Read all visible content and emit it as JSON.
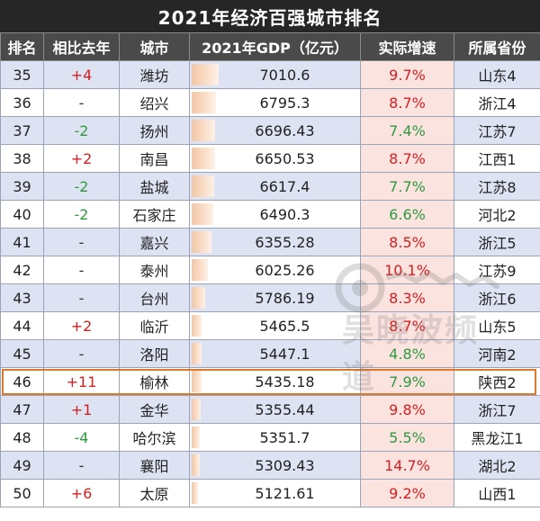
{
  "title": "2021年经济百强城市排名",
  "headers": [
    "排名",
    "相比去年",
    "城市",
    "2021年GDP（亿元）",
    "实际增速",
    "所属省份"
  ],
  "watermark": {
    "brand": "channel-wu",
    "text": "吴晓波频道"
  },
  "colors": {
    "up": "#d42020",
    "down": "#2e9a3e",
    "highlight": "#e0782b",
    "header_bg": "#4a4a4a",
    "title_bg": "#262626"
  },
  "highlight_rank": "46",
  "rows": [
    {
      "rank": "35",
      "change": "+4",
      "city": "潍坊",
      "gdp": "7010.6",
      "growth": "9.7%",
      "province": "山东4"
    },
    {
      "rank": "36",
      "change": "-",
      "city": "绍兴",
      "gdp": "6795.3",
      "growth": "8.7%",
      "province": "浙江4"
    },
    {
      "rank": "37",
      "change": "-2",
      "city": "扬州",
      "gdp": "6696.43",
      "growth": "7.4%",
      "province": "江苏7"
    },
    {
      "rank": "38",
      "change": "+2",
      "city": "南昌",
      "gdp": "6650.53",
      "growth": "8.7%",
      "province": "江西1"
    },
    {
      "rank": "39",
      "change": "-2",
      "city": "盐城",
      "gdp": "6617.4",
      "growth": "7.7%",
      "province": "江苏8"
    },
    {
      "rank": "40",
      "change": "-2",
      "city": "石家庄",
      "gdp": "6490.3",
      "growth": "6.6%",
      "province": "河北2"
    },
    {
      "rank": "41",
      "change": "-",
      "city": "嘉兴",
      "gdp": "6355.28",
      "growth": "8.5%",
      "province": "浙江5"
    },
    {
      "rank": "42",
      "change": "-",
      "city": "泰州",
      "gdp": "6025.26",
      "growth": "10.1%",
      "province": "江苏9"
    },
    {
      "rank": "43",
      "change": "-",
      "city": "台州",
      "gdp": "5786.19",
      "growth": "8.3%",
      "province": "浙江6"
    },
    {
      "rank": "44",
      "change": "+2",
      "city": "临沂",
      "gdp": "5465.5",
      "growth": "8.7%",
      "province": "山东5"
    },
    {
      "rank": "45",
      "change": "-",
      "city": "洛阳",
      "gdp": "5447.1",
      "growth": "4.8%",
      "province": "河南2"
    },
    {
      "rank": "46",
      "change": "+11",
      "city": "榆林",
      "gdp": "5435.18",
      "growth": "7.9%",
      "province": "陕西2"
    },
    {
      "rank": "47",
      "change": "+1",
      "city": "金华",
      "gdp": "5355.44",
      "growth": "9.8%",
      "province": "浙江7"
    },
    {
      "rank": "48",
      "change": "-4",
      "city": "哈尔滨",
      "gdp": "5351.7",
      "growth": "5.5%",
      "province": "黑龙江1"
    },
    {
      "rank": "49",
      "change": "-",
      "city": "襄阳",
      "gdp": "5309.43",
      "growth": "14.7%",
      "province": "湖北2"
    },
    {
      "rank": "50",
      "change": "+6",
      "city": "太原",
      "gdp": "5121.61",
      "growth": "9.2%",
      "province": "山西1"
    }
  ],
  "chart_data": {
    "type": "table",
    "title": "2021年经济百强城市排名",
    "columns": [
      "排名",
      "相比去年",
      "城市",
      "2021年GDP（亿元）",
      "实际增速",
      "所属省份"
    ],
    "gdp_bar_domain": [
      0,
      7010.6
    ],
    "growth_color_threshold": 8.0
  }
}
